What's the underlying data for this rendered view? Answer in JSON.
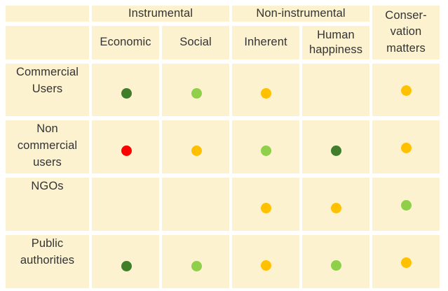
{
  "colors": {
    "background": "#fdf2d0",
    "dark-green": "#3f7f2a",
    "light-green": "#8fcf4a",
    "amber": "#ffc000",
    "red": "#ff0000"
  },
  "header": {
    "groups": [
      {
        "key": "instrumental",
        "label": "Instrumental"
      },
      {
        "key": "non-instrumental",
        "label": "Non-instrumental"
      },
      {
        "key": "conservation-matters",
        "label": "Conser-\nvation\nmatters"
      }
    ],
    "columns": [
      {
        "key": "economic",
        "label": "Economic"
      },
      {
        "key": "social",
        "label": "Social"
      },
      {
        "key": "inherent",
        "label": "Inherent"
      },
      {
        "key": "human-happiness",
        "label": "Human\nhappiness"
      }
    ]
  },
  "rows": [
    {
      "key": "commercial-users",
      "label": "Commercial\nUsers",
      "marks": [
        "dark-green",
        "light-green",
        "amber",
        null,
        "amber"
      ]
    },
    {
      "key": "non-commercial-users",
      "label": "Non\ncommercial\nusers",
      "marks": [
        "red",
        "amber",
        "light-green",
        "dark-green",
        "amber"
      ]
    },
    {
      "key": "ngos",
      "label": "NGOs",
      "marks": [
        null,
        null,
        "amber",
        "amber",
        "light-green"
      ]
    },
    {
      "key": "public-authorities",
      "label": "Public\nauthorities",
      "marks": [
        "dark-green",
        "light-green",
        "amber",
        "light-green",
        "amber"
      ]
    }
  ]
}
